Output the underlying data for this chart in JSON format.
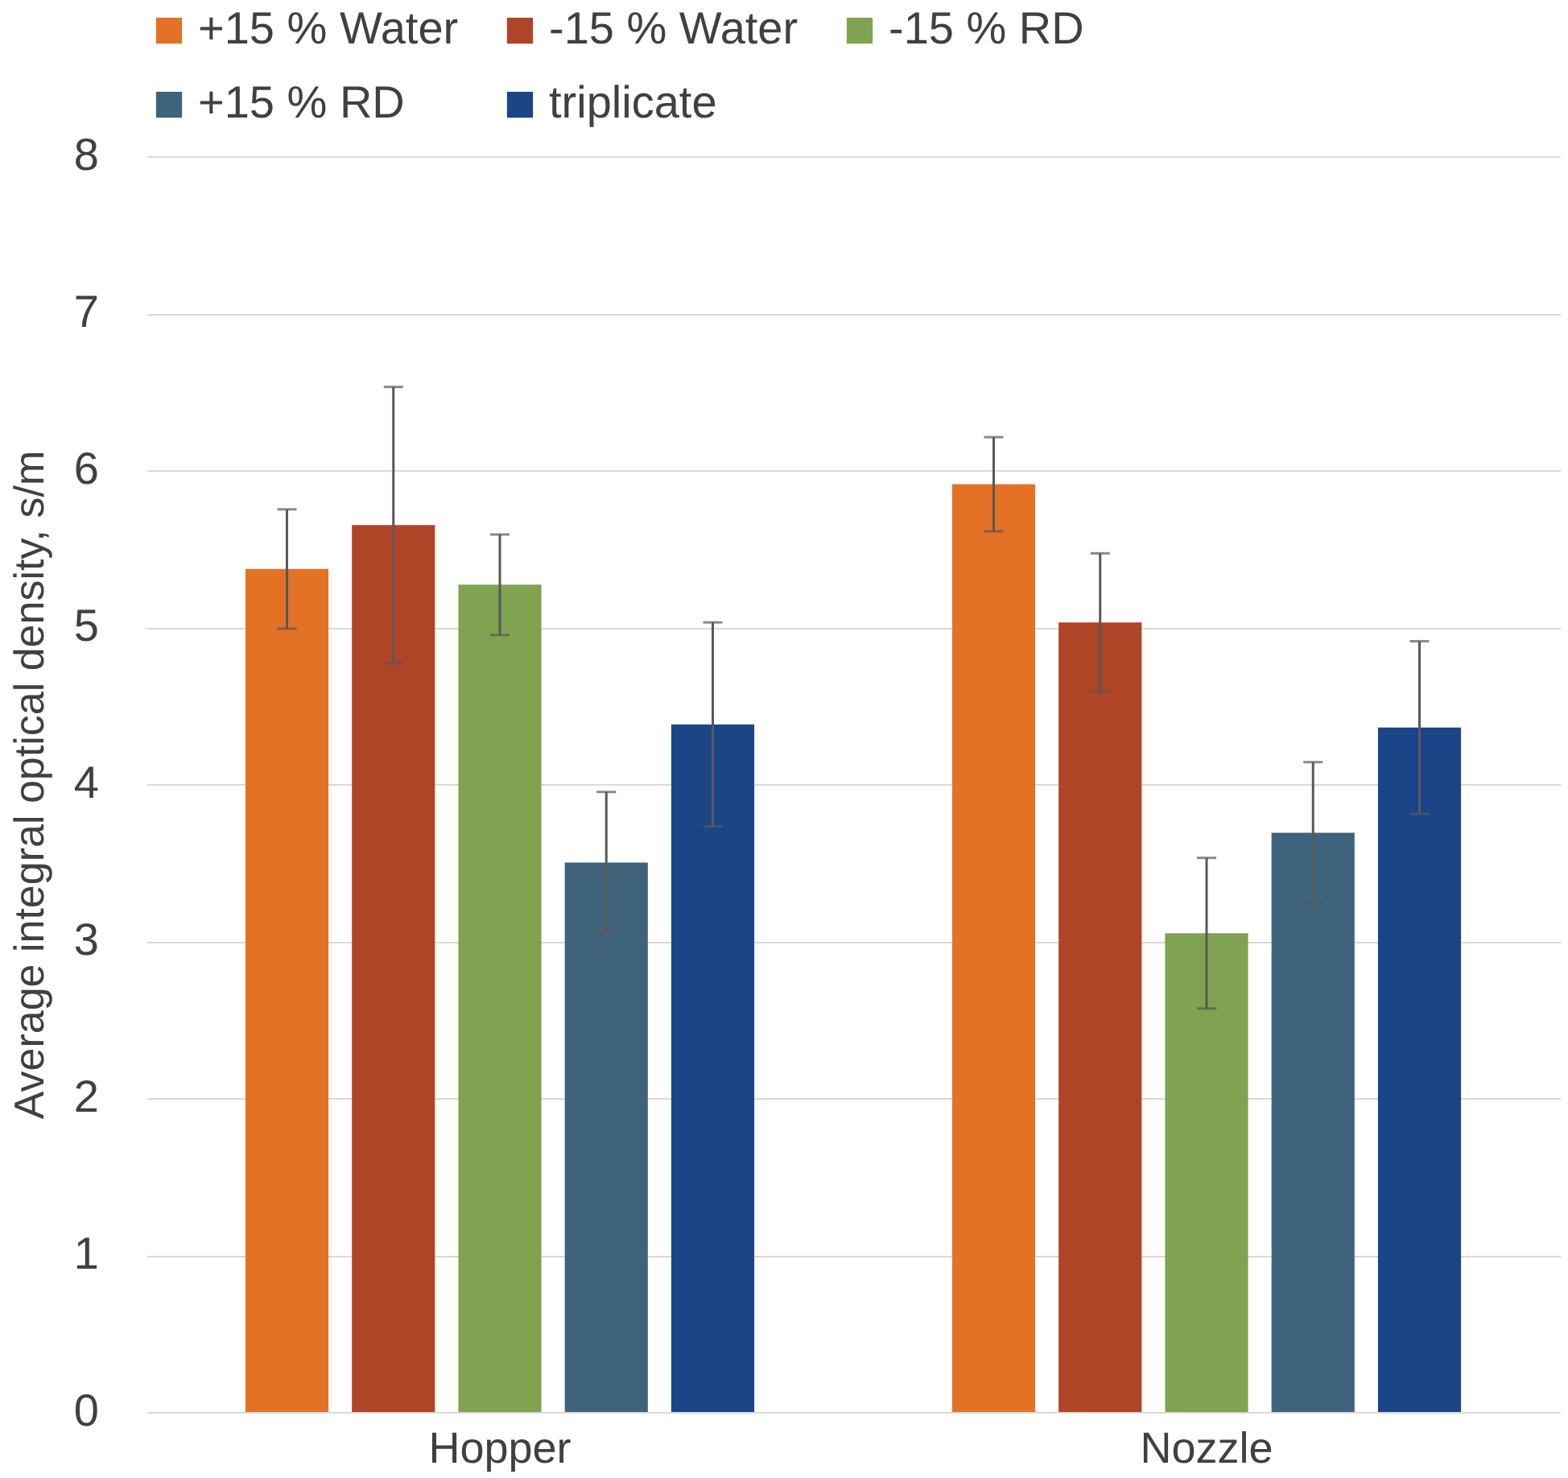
{
  "chart_data": {
    "type": "bar",
    "ylabel": "Average integral optical density, s/m",
    "categories": [
      "Hopper",
      "Nozzle"
    ],
    "series": [
      {
        "name": "+15 % Water",
        "color": "#e37226",
        "values": [
          5.37,
          5.91
        ],
        "errors": [
          0.38,
          0.3
        ]
      },
      {
        "name": "-15 % Water",
        "color": "#b04427",
        "values": [
          5.65,
          5.03
        ],
        "errors": [
          0.88,
          0.44
        ]
      },
      {
        "name": "-15 % RD",
        "color": "#7fa350",
        "values": [
          5.27,
          3.05
        ],
        "errors": [
          0.32,
          0.48
        ]
      },
      {
        "name": "+15 % RD",
        "color": "#3f637b",
        "values": [
          3.5,
          3.69
        ],
        "errors": [
          0.45,
          0.45
        ]
      },
      {
        "name": "triplicate",
        "color": "#1c4587",
        "values": [
          4.38,
          4.36
        ],
        "errors": [
          0.65,
          0.55
        ]
      }
    ],
    "ylim": [
      0,
      8
    ],
    "yticks": [
      0,
      1,
      2,
      3,
      4,
      5,
      6,
      7,
      8
    ],
    "grid": "y",
    "legend": "top"
  }
}
